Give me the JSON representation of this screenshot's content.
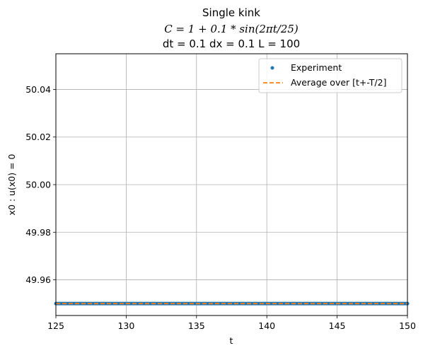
{
  "chart_data": {
    "type": "line",
    "title": {
      "line1": "Single kink",
      "line2": "C = 1 + 0.1 * sin(2πt/25)",
      "line3": "dt = 0.1 dx = 0.1 L = 100"
    },
    "xlabel": "t",
    "ylabel": "x0 : u(x0) = 0",
    "xlim": [
      125,
      150
    ],
    "ylim": [
      49.945,
      50.055
    ],
    "xticks": [
      125,
      130,
      135,
      140,
      145,
      150
    ],
    "yticks": [
      49.96,
      49.98,
      50.0,
      50.02,
      50.04
    ],
    "ytick_labels": [
      "49.96",
      "49.98",
      "50.00",
      "50.02",
      "50.04"
    ],
    "grid": true,
    "legend_position": "top-right",
    "series": [
      {
        "name": "Experiment",
        "style": "markers",
        "color": "#1f77b4",
        "x_start": 125,
        "x_end": 150,
        "x_step": 0.1,
        "y_constant": 49.95
      },
      {
        "name": "Average over [t+-T/2]",
        "style": "dashed",
        "color": "#ff7f0e",
        "x": [
          125,
          150
        ],
        "y": [
          49.95,
          49.95
        ]
      }
    ]
  }
}
